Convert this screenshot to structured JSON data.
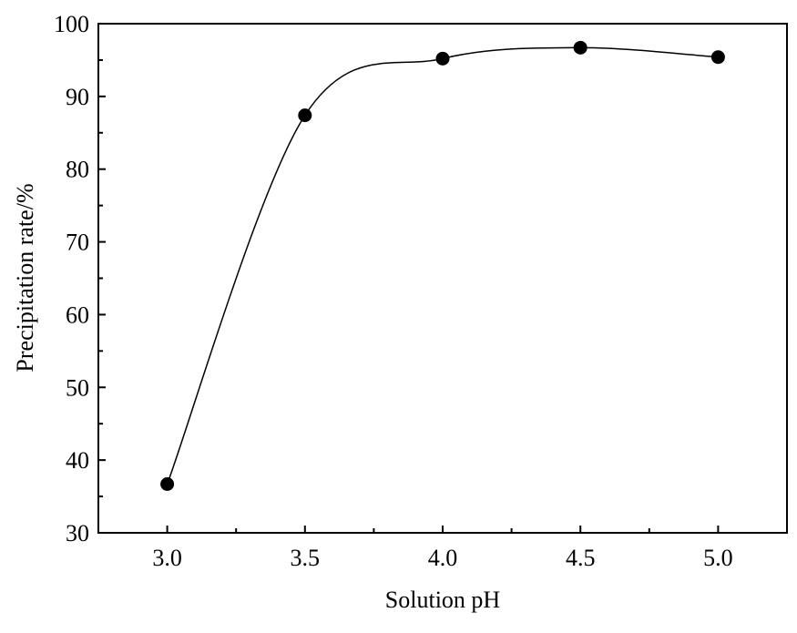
{
  "chart_data": {
    "type": "line",
    "title": "",
    "xlabel": "Solution pH",
    "ylabel": "Precipitation rate/%",
    "x": [
      3.0,
      3.5,
      4.0,
      4.5,
      5.0
    ],
    "x_tick_labels": [
      "3.0",
      "3.5",
      "4.0",
      "4.5",
      "5.0"
    ],
    "y_tick_labels": [
      "30",
      "40",
      "50",
      "60",
      "70",
      "80",
      "90",
      "100"
    ],
    "xlim": [
      2.75,
      5.25
    ],
    "ylim": [
      30,
      100
    ],
    "grid": false,
    "legend": false,
    "series": [
      {
        "values": [
          36.7,
          87.4,
          95.2,
          96.7,
          95.4
        ],
        "marker": "filled-circle",
        "line_style": "smooth",
        "color": "#000000"
      }
    ]
  }
}
